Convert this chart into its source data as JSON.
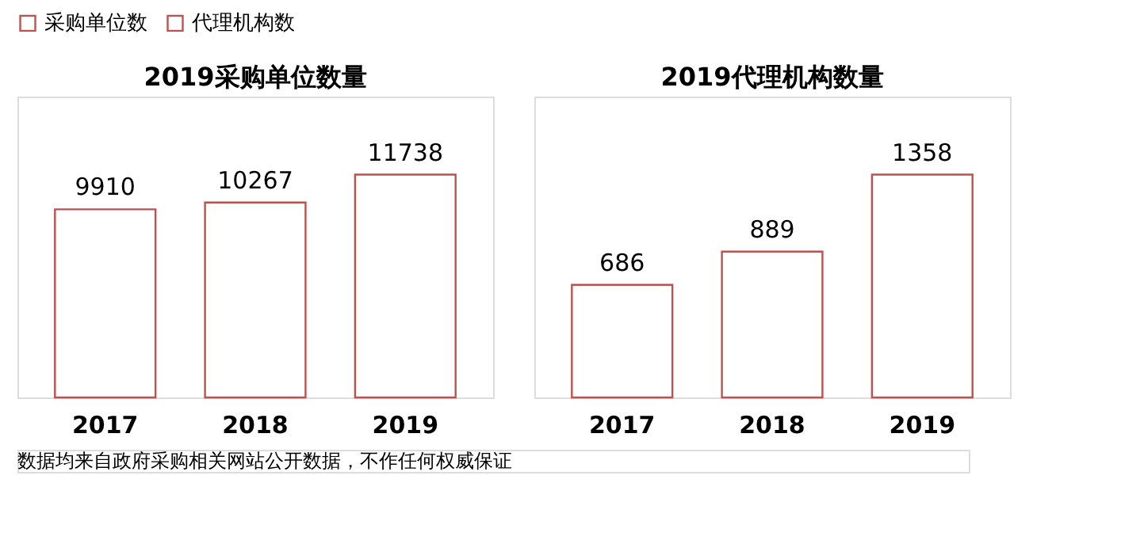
{
  "chart_data": [
    {
      "type": "bar",
      "title": "2019采购单位数量",
      "categories": [
        "2017",
        "2018",
        "2019"
      ],
      "series": [
        {
          "name": "采购单位数",
          "color": "#c0504d",
          "values": [
            9910,
            10267,
            11738
          ]
        }
      ],
      "data_labels": true,
      "legend": "top",
      "annotations": [
        "数据均来自政府采购相关网站公开数据，不作任何权威保证"
      ]
    },
    {
      "type": "bar",
      "title": "2019代理机构数量",
      "categories": [
        "2017",
        "2018",
        "2019"
      ],
      "series": [
        {
          "name": "代理机构数",
          "color": "#c0504d",
          "values": [
            686,
            889,
            1358
          ]
        }
      ],
      "data_labels": true,
      "legend": "top"
    }
  ]
}
